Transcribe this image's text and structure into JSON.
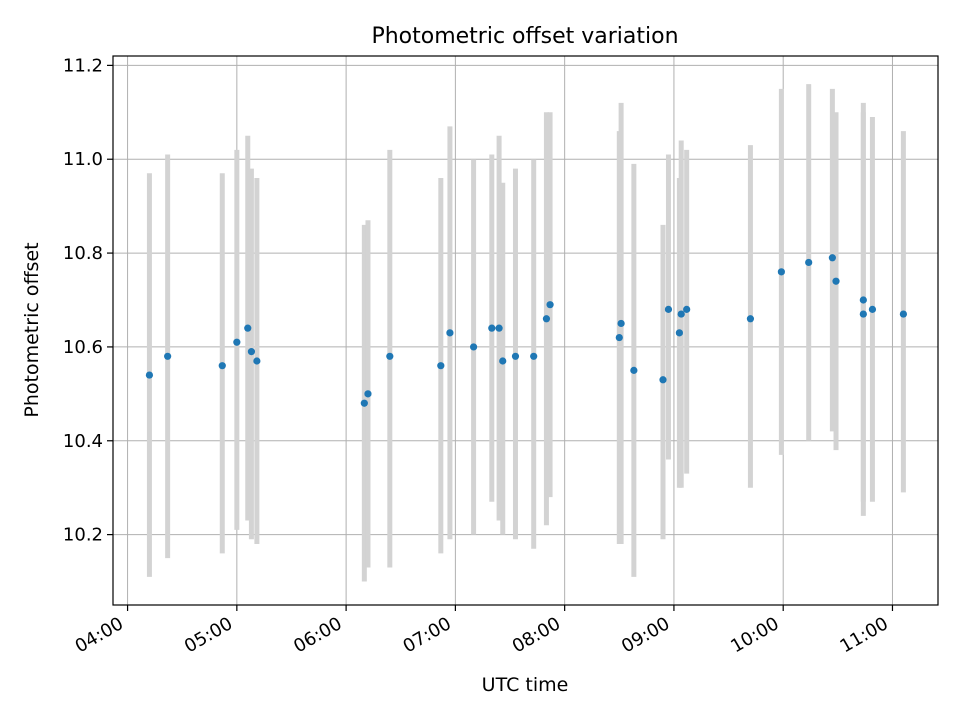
{
  "chart_data": {
    "type": "scatter",
    "title": "Photometric offset variation",
    "xlabel": "UTC time",
    "ylabel": "Photometric offset",
    "x_tick_labels": [
      "04:00",
      "05:00",
      "06:00",
      "07:00",
      "08:00",
      "09:00",
      "10:00",
      "11:00"
    ],
    "y_tick_labels": [
      "10.2",
      "10.4",
      "10.6",
      "10.8",
      "11.0",
      "11.2"
    ],
    "xlim": [
      "03:52",
      "11:25"
    ],
    "ylim": [
      10.05,
      11.22
    ],
    "grid": true,
    "colors": {
      "point": "#1f77b4",
      "errorbar": "#d3d3d3",
      "grid": "#b0b0b0"
    },
    "points": [
      {
        "x": "04:12",
        "y": 10.54,
        "low": 10.11,
        "high": 10.97
      },
      {
        "x": "04:22",
        "y": 10.58,
        "low": 10.15,
        "high": 11.01
      },
      {
        "x": "04:52",
        "y": 10.56,
        "low": 10.16,
        "high": 10.97
      },
      {
        "x": "05:00",
        "y": 10.61,
        "low": 10.21,
        "high": 11.02
      },
      {
        "x": "05:06",
        "y": 10.64,
        "low": 10.23,
        "high": 11.05
      },
      {
        "x": "05:08",
        "y": 10.59,
        "low": 10.19,
        "high": 10.98
      },
      {
        "x": "05:11",
        "y": 10.57,
        "low": 10.18,
        "high": 10.96
      },
      {
        "x": "06:10",
        "y": 10.48,
        "low": 10.1,
        "high": 10.86
      },
      {
        "x": "06:12",
        "y": 10.5,
        "low": 10.13,
        "high": 10.87
      },
      {
        "x": "06:24",
        "y": 10.58,
        "low": 10.13,
        "high": 11.02
      },
      {
        "x": "06:52",
        "y": 10.56,
        "low": 10.16,
        "high": 10.96
      },
      {
        "x": "06:57",
        "y": 10.63,
        "low": 10.19,
        "high": 11.07
      },
      {
        "x": "07:10",
        "y": 10.6,
        "low": 10.2,
        "high": 11.0
      },
      {
        "x": "07:20",
        "y": 10.64,
        "low": 10.27,
        "high": 11.01
      },
      {
        "x": "07:24",
        "y": 10.64,
        "low": 10.23,
        "high": 11.05
      },
      {
        "x": "07:26",
        "y": 10.57,
        "low": 10.2,
        "high": 10.95
      },
      {
        "x": "07:33",
        "y": 10.58,
        "low": 10.19,
        "high": 10.98
      },
      {
        "x": "07:43",
        "y": 10.58,
        "low": 10.17,
        "high": 11.0
      },
      {
        "x": "07:50",
        "y": 10.66,
        "low": 10.22,
        "high": 11.1
      },
      {
        "x": "07:52",
        "y": 10.69,
        "low": 10.28,
        "high": 11.1
      },
      {
        "x": "08:30",
        "y": 10.62,
        "low": 10.18,
        "high": 11.06
      },
      {
        "x": "08:31",
        "y": 10.65,
        "low": 10.18,
        "high": 11.12
      },
      {
        "x": "08:38",
        "y": 10.55,
        "low": 10.11,
        "high": 10.99
      },
      {
        "x": "08:54",
        "y": 10.53,
        "low": 10.19,
        "high": 10.86
      },
      {
        "x": "08:57",
        "y": 10.68,
        "low": 10.36,
        "high": 11.01
      },
      {
        "x": "09:03",
        "y": 10.63,
        "low": 10.3,
        "high": 10.96
      },
      {
        "x": "09:04",
        "y": 10.67,
        "low": 10.3,
        "high": 11.04
      },
      {
        "x": "09:07",
        "y": 10.68,
        "low": 10.33,
        "high": 11.02
      },
      {
        "x": "09:42",
        "y": 10.66,
        "low": 10.3,
        "high": 11.03
      },
      {
        "x": "09:59",
        "y": 10.76,
        "low": 10.37,
        "high": 11.15
      },
      {
        "x": "10:14",
        "y": 10.78,
        "low": 10.4,
        "high": 11.16
      },
      {
        "x": "10:27",
        "y": 10.79,
        "low": 10.42,
        "high": 11.15
      },
      {
        "x": "10:29",
        "y": 10.74,
        "low": 10.38,
        "high": 11.1
      },
      {
        "x": "10:44",
        "y": 10.7,
        "low": 10.27,
        "high": 11.12
      },
      {
        "x": "10:44",
        "y": 10.67,
        "low": 10.24,
        "high": 11.1
      },
      {
        "x": "10:49",
        "y": 10.68,
        "low": 10.27,
        "high": 11.09
      },
      {
        "x": "11:06",
        "y": 10.67,
        "low": 10.29,
        "high": 11.06
      }
    ]
  }
}
